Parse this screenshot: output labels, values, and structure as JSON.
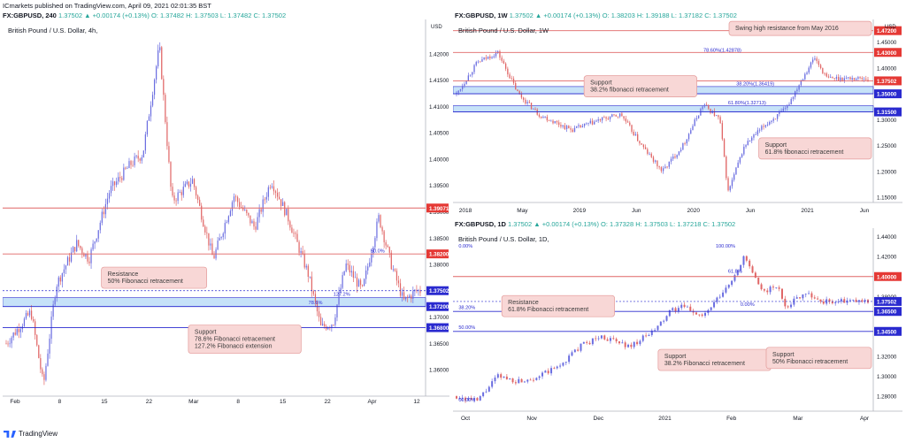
{
  "header": {
    "publisher": "ICmarkets published on TradingView.com, April 09, 2021 02:01:35 BST",
    "brand": "TradingView"
  },
  "colors": {
    "up": "#6a6de0",
    "down": "#e06666",
    "red_line": "#e06666",
    "blue_line": "#2a2acf",
    "zone": "#aed6f5",
    "zone_border": "#2a2acf",
    "callout_bg": "#f8d7d6",
    "callout_border": "#e39a99",
    "price_label_red": "#e53935",
    "price_label_blue": "#2a2acf",
    "current_label": "#2a2acf"
  },
  "panes": {
    "h4": {
      "symbol": "FX:GBPUSD, 240",
      "ohlc": "1.37502 ▲ +0.00174 (+0.13%) O: 1.37482 H: 1.37503 L: 1.37482 C: 1.37502",
      "title": "British Pound / U.S. Dollar, 4h,",
      "currency": "USD"
    },
    "w1": {
      "symbol": "FX:GBPUSD, 1W",
      "ohlc": "1.37502 ▲ +0.00174 (+0.13%) O: 1.38203 H: 1.39188 L: 1.37182 C: 1.37502",
      "title": "British Pound / U.S. Dollar, 1W",
      "currency": "USD"
    },
    "d1": {
      "symbol": "FX:GBPUSD, 1D",
      "ohlc": "1.37502 ▲ +0.00174 (+0.13%) O: 1.37328 H: 1.37503 L: 1.37218 C: 1.37502",
      "title": "British Pound / U.S. Dollar, 1D,"
    }
  },
  "chart_data": [
    {
      "id": "h4",
      "type": "candlestick",
      "title": "British Pound / U.S. Dollar, 4h,",
      "ylim": [
        1.355,
        1.4255
      ],
      "y_ticks": [
        "1.42000",
        "1.41500",
        "1.41000",
        "1.40500",
        "1.40000",
        "1.39500",
        "1.39000",
        "1.38500",
        "1.38000",
        "1.37000",
        "1.36500",
        "1.36000"
      ],
      "x_ticks": [
        "Feb",
        "8",
        "15",
        "22",
        "Mar",
        "8",
        "15",
        "22",
        "Apr",
        "12"
      ],
      "path": [
        [
          0,
          1.365
        ],
        [
          0.06,
          1.371
        ],
        [
          0.09,
          1.357
        ],
        [
          0.12,
          1.376
        ],
        [
          0.17,
          1.384
        ],
        [
          0.2,
          1.381
        ],
        [
          0.25,
          1.394
        ],
        [
          0.3,
          1.399
        ],
        [
          0.33,
          1.401
        ],
        [
          0.37,
          1.4215
        ],
        [
          0.4,
          1.392
        ],
        [
          0.45,
          1.396
        ],
        [
          0.5,
          1.381
        ],
        [
          0.55,
          1.393
        ],
        [
          0.6,
          1.387
        ],
        [
          0.64,
          1.396
        ],
        [
          0.68,
          1.389
        ],
        [
          0.73,
          1.378
        ],
        [
          0.76,
          1.368
        ],
        [
          0.79,
          1.369
        ],
        [
          0.82,
          1.38
        ],
        [
          0.86,
          1.375
        ],
        [
          0.9,
          1.389
        ],
        [
          0.93,
          1.38
        ],
        [
          0.96,
          1.373
        ],
        [
          0.99,
          1.375
        ]
      ],
      "levels": [
        {
          "price": 1.39071,
          "label": "1.39071",
          "color": "red"
        },
        {
          "price": 1.382,
          "label": "1.38200",
          "color": "red"
        },
        {
          "price": 1.37502,
          "label": "1.37502",
          "color": "current"
        },
        {
          "price": 1.372,
          "label": "1.37200",
          "color": "blue"
        },
        {
          "price": 1.368,
          "label": "1.36800",
          "color": "blue"
        }
      ],
      "zone": [
        1.372,
        1.3737
      ],
      "fib_labels": [
        {
          "text": "50.0%",
          "x": 0.88,
          "y": 1.382
        },
        {
          "text": "127.2%",
          "x": 0.79,
          "y": 1.3738
        },
        {
          "text": "78.6%",
          "x": 0.73,
          "y": 1.3722
        }
      ],
      "annotations": [
        {
          "text": "Resistance\n50% Fibonacci retracement",
          "x": 0.23,
          "y": 1.3795
        },
        {
          "text": "Support\n78.6% Fibonacci retracement\n127.2% Fibonacci extension",
          "x": 0.44,
          "y": 1.3685
        }
      ]
    },
    {
      "id": "w1",
      "type": "candlestick",
      "title": "British Pound / U.S. Dollar, 1W",
      "ylim": [
        1.14,
        1.48
      ],
      "y_ticks": [
        "1.45000",
        "1.40000",
        "1.30000",
        "1.25000",
        "1.20000",
        "1.15000"
      ],
      "x_ticks": [
        "2018",
        "May",
        "2019",
        "Jun",
        "2020",
        "Jun",
        "2021",
        "Jun"
      ],
      "path": [
        [
          0,
          1.35
        ],
        [
          0.05,
          1.41
        ],
        [
          0.1,
          1.43
        ],
        [
          0.15,
          1.35
        ],
        [
          0.2,
          1.31
        ],
        [
          0.28,
          1.28
        ],
        [
          0.35,
          1.3
        ],
        [
          0.4,
          1.31
        ],
        [
          0.45,
          1.25
        ],
        [
          0.5,
          1.2
        ],
        [
          0.55,
          1.25
        ],
        [
          0.6,
          1.33
        ],
        [
          0.64,
          1.3
        ],
        [
          0.66,
          1.16
        ],
        [
          0.7,
          1.25
        ],
        [
          0.75,
          1.29
        ],
        [
          0.8,
          1.32
        ],
        [
          0.84,
          1.38
        ],
        [
          0.87,
          1.42
        ],
        [
          0.9,
          1.38
        ]
      ],
      "levels": [
        {
          "price": 1.472,
          "label": "1.47200",
          "color": "red"
        },
        {
          "price": 1.43,
          "label": "1.43000",
          "color": "red"
        },
        {
          "price": 1.37502,
          "label": "1.37502",
          "color": "red"
        },
        {
          "price": 1.35,
          "label": "1.35000",
          "color": "blue"
        },
        {
          "price": 1.315,
          "label": "1.31500",
          "color": "blue"
        }
      ],
      "zones": [
        [
          1.35,
          1.364
        ],
        [
          1.315,
          1.327
        ]
      ],
      "fib_labels": [
        {
          "text": "78.60%(1.42878)",
          "x": 0.6,
          "y": 1.4288
        },
        {
          "text": "38.20%(1.36419)",
          "x": 0.68,
          "y": 1.3642
        },
        {
          "text": "61.80%(1.32713)",
          "x": 0.66,
          "y": 1.3271
        }
      ],
      "annotations": [
        {
          "text": "Swing high resistance from May 2016",
          "x": 0.68,
          "y": 1.49
        },
        {
          "text": "Support\n38.2% fibonacci retracement",
          "x": 0.31,
          "y": 1.385
        },
        {
          "text": "Support\n61.8% fibonacci retracement",
          "x": 0.77,
          "y": 1.265
        }
      ]
    },
    {
      "id": "d1",
      "type": "candlestick",
      "title": "British Pound / U.S. Dollar, 1D,",
      "ylim": [
        1.265,
        1.445
      ],
      "y_ticks": [
        "1.44000",
        "1.42000",
        "1.38000",
        "1.32000",
        "1.30000",
        "1.28000"
      ],
      "x_ticks": [
        "Oct",
        "Nov",
        "Dec",
        "2021",
        "Feb",
        "Mar",
        "Apr"
      ],
      "path": [
        [
          0,
          1.28
        ],
        [
          0.05,
          1.275
        ],
        [
          0.1,
          1.3
        ],
        [
          0.15,
          1.295
        ],
        [
          0.2,
          1.3
        ],
        [
          0.25,
          1.31
        ],
        [
          0.3,
          1.33
        ],
        [
          0.35,
          1.34
        ],
        [
          0.42,
          1.33
        ],
        [
          0.48,
          1.345
        ],
        [
          0.52,
          1.365
        ],
        [
          0.55,
          1.37
        ],
        [
          0.6,
          1.36
        ],
        [
          0.66,
          1.39
        ],
        [
          0.7,
          1.42
        ],
        [
          0.74,
          1.385
        ],
        [
          0.78,
          1.39
        ],
        [
          0.8,
          1.37
        ],
        [
          0.85,
          1.385
        ],
        [
          0.88,
          1.375
        ]
      ],
      "levels": [
        {
          "price": 1.4,
          "label": "1.40000",
          "color": "red"
        },
        {
          "price": 1.37502,
          "label": "1.37502",
          "color": "current"
        },
        {
          "price": 1.365,
          "label": "1.36500",
          "color": "blue"
        },
        {
          "price": 1.345,
          "label": "1.34500",
          "color": "blue"
        }
      ],
      "fib_labels": [
        {
          "text": "0.00%",
          "x": 0.005,
          "y": 1.4275
        },
        {
          "text": "100.00%",
          "x": 0.63,
          "y": 1.4275
        },
        {
          "text": "61.8%",
          "x": 0.66,
          "y": 1.4025
        },
        {
          "text": "0.00%",
          "x": 0.69,
          "y": 1.369
        },
        {
          "text": "38.20%",
          "x": 0.005,
          "y": 1.366
        },
        {
          "text": "50.00%",
          "x": 0.005,
          "y": 1.346
        },
        {
          "text": "00.00%",
          "x": 0.005,
          "y": 1.2735
        }
      ],
      "annotations": [
        {
          "text": "Resistance\n61.8% Fibonacci retracement",
          "x": 0.11,
          "y": 1.381
        },
        {
          "text": "Support\n38.2% Fibonacci retracement",
          "x": 0.49,
          "y": 1.327
        },
        {
          "text": "Support\n50% Fibonacci retracement",
          "x": 0.77,
          "y": 1.329
        }
      ]
    }
  ]
}
